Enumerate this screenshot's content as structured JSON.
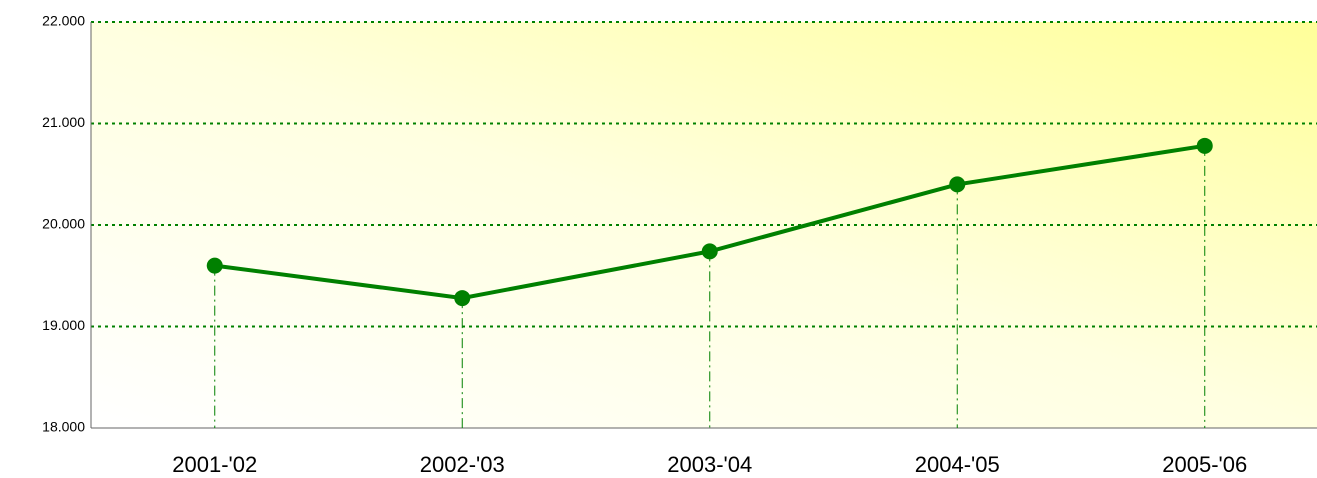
{
  "chart_data": {
    "type": "line",
    "categories": [
      "2001-'02",
      "2002-'03",
      "2003-'04",
      "2004-'05",
      "2005-'06"
    ],
    "series": [
      {
        "name": null,
        "color": "#008000",
        "values": [
          19600,
          19280,
          19740,
          20400,
          20780
        ]
      }
    ],
    "ylim": [
      18000,
      22000
    ],
    "yticks": [
      {
        "value": 18000,
        "label": "18.000"
      },
      {
        "value": 19000,
        "label": "19.000"
      },
      {
        "value": 20000,
        "label": "20.000"
      },
      {
        "value": 21000,
        "label": "21.000"
      },
      {
        "value": 22000,
        "label": "22.000"
      }
    ],
    "grid": true,
    "grid_color": "#008000",
    "drop_lines": true
  }
}
